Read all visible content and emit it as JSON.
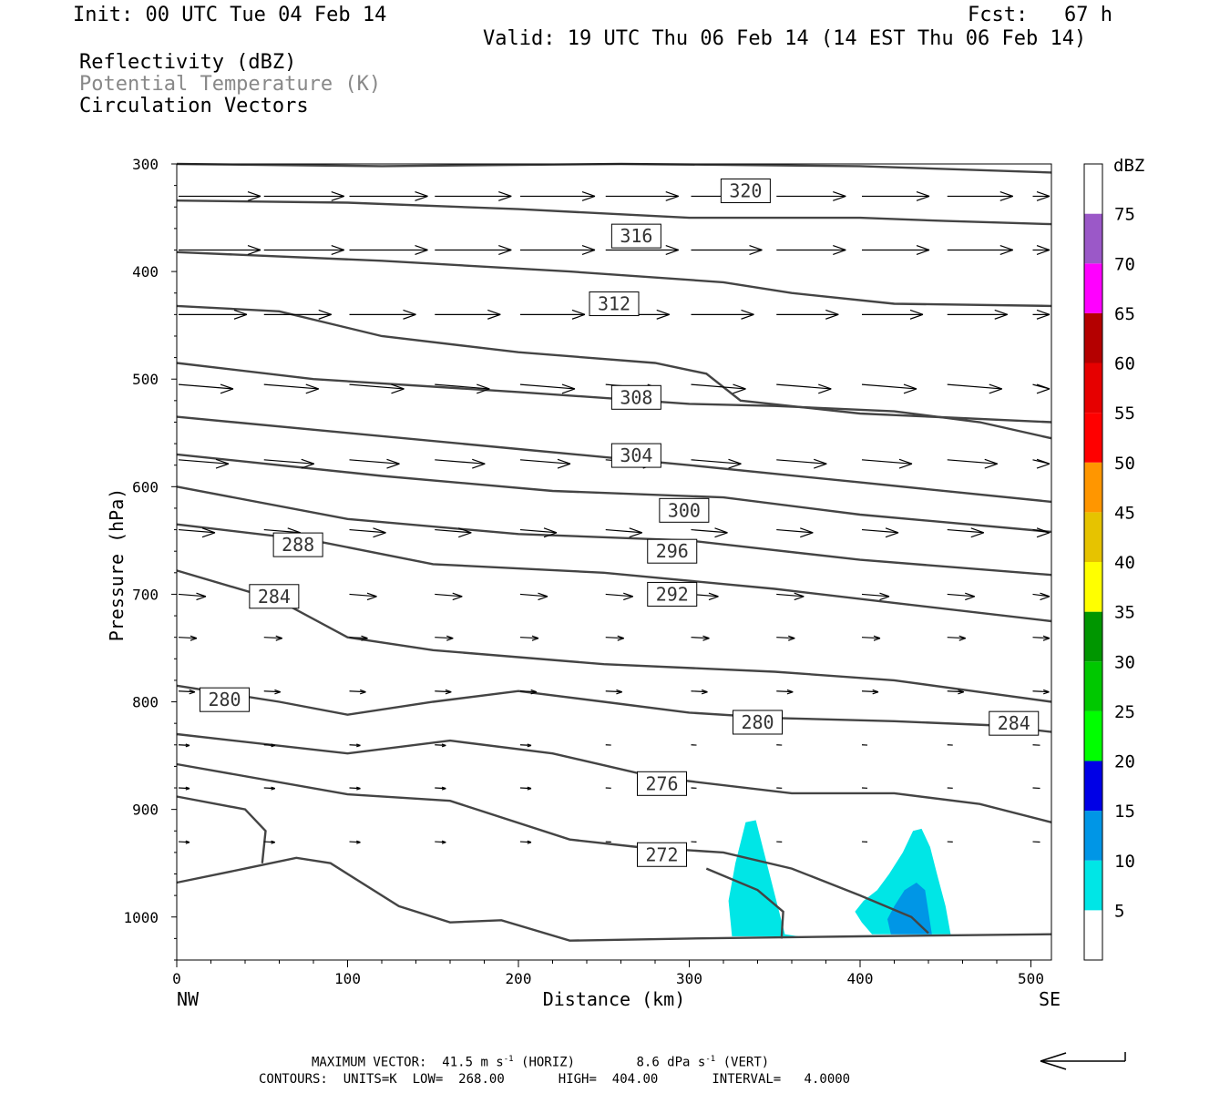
{
  "header": {
    "init": "Init: 00 UTC Tue 04 Feb 14",
    "fcst": "Fcst:   67 h",
    "valid": "Valid: 19 UTC Thu 06 Feb 14 (14 EST Thu 06 Feb 14)",
    "fields": [
      "Reflectivity (dBZ)",
      "Potential Temperature (K)",
      "Circulation Vectors"
    ]
  },
  "chart_data": {
    "type": "cross-section",
    "xlabel": "Distance (km)",
    "ylabel": "Pressure (hPa)",
    "xlim": [
      0,
      512
    ],
    "ylim": [
      1040,
      300
    ],
    "x_ticks": [
      "0",
      "100",
      "200",
      "300",
      "400",
      "500"
    ],
    "y_ticks": [
      "300",
      "400",
      "500",
      "600",
      "700",
      "800",
      "900",
      "1000"
    ],
    "x_endpoints": [
      "NW",
      "SE"
    ],
    "theta_contour_labels": [
      {
        "label": "320",
        "x": 333,
        "p": 325
      },
      {
        "label": "316",
        "x": 269,
        "p": 367
      },
      {
        "label": "312",
        "x": 256,
        "p": 430
      },
      {
        "label": "308",
        "x": 269,
        "p": 517
      },
      {
        "label": "304",
        "x": 269,
        "p": 571
      },
      {
        "label": "300",
        "x": 297,
        "p": 622
      },
      {
        "label": "296",
        "x": 290,
        "p": 660
      },
      {
        "label": "292",
        "x": 290,
        "p": 700
      },
      {
        "label": "288",
        "x": 71,
        "p": 654
      },
      {
        "label": "284",
        "x": 57,
        "p": 702
      },
      {
        "label": "280",
        "x": 28,
        "p": 798
      },
      {
        "label": "280",
        "x": 340,
        "p": 819
      },
      {
        "label": "284",
        "x": 490,
        "p": 820
      },
      {
        "label": "276",
        "x": 284,
        "p": 876
      },
      {
        "label": "272",
        "x": 284,
        "p": 942
      }
    ],
    "colorbar": {
      "unit": "dBZ",
      "levels": [
        "5",
        "10",
        "15",
        "20",
        "25",
        "30",
        "35",
        "40",
        "45",
        "50",
        "55",
        "60",
        "65",
        "70",
        "75"
      ],
      "colors": [
        "#ffffff",
        "#00e6e6",
        "#0096e6",
        "#0000e6",
        "#00ff00",
        "#00c800",
        "#009600",
        "#ffff00",
        "#e6c300",
        "#ff9600",
        "#ff0000",
        "#e60000",
        "#b40000",
        "#ff00ff",
        "#9b58c8",
        "#ffffff"
      ]
    },
    "reflectivity_areas": [
      {
        "x_range": [
          324,
          364
        ],
        "p_range": [
          910,
          1020
        ],
        "max_dbz": "5-10"
      },
      {
        "x_range": [
          395,
          454
        ],
        "p_range": [
          918,
          1016
        ],
        "max_dbz": "10-15"
      }
    ]
  },
  "footer": {
    "max_vector_label": "MAXIMUM VECTOR:",
    "horiz": "41.5 m s",
    "horiz_unit": "(HORIZ)",
    "vert": "8.6 dPa s",
    "vert_unit": "(VERT)",
    "contours_label": "CONTOURS:",
    "units": "UNITS=K",
    "low_label": "LOW=",
    "low": "268.00",
    "high_label": "HIGH=",
    "high": "404.00",
    "interval_label": "INTERVAL=",
    "interval": "4.0000",
    "sup": "-1"
  }
}
